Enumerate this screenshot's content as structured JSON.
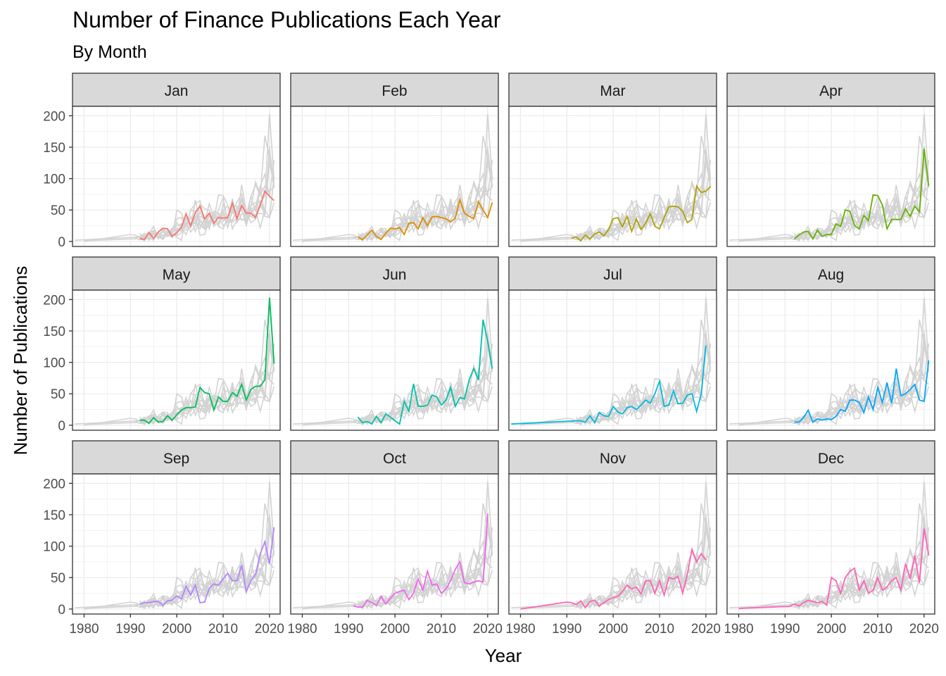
{
  "chart_data": {
    "type": "line",
    "title": "Number of Finance Publications Each Year",
    "subtitle": "By Month",
    "xlabel": "Year",
    "ylabel": "Number of Publications",
    "xlim": [
      1977.5,
      2022.3
    ],
    "ylim": [
      -8,
      215
    ],
    "x_ticks": [
      1980,
      1990,
      2000,
      2010,
      2020
    ],
    "y_ticks": [
      0,
      50,
      100,
      150,
      200
    ],
    "grid": true,
    "background_series_color": "#d3d3d3",
    "facets": [
      {
        "label": "Jan",
        "color": "#F8766D",
        "x": [
          1992,
          1993,
          1994,
          1995,
          1996,
          1997,
          1998,
          1999,
          2000,
          2001,
          2002,
          2003,
          2004,
          2005,
          2006,
          2007,
          2008,
          2009,
          2010,
          2011,
          2012,
          2013,
          2014,
          2015,
          2016,
          2017,
          2018,
          2019,
          2020,
          2021
        ],
        "y": [
          5,
          3,
          14,
          5,
          15,
          21,
          20,
          8,
          14,
          22,
          44,
          25,
          46,
          56,
          36,
          45,
          29,
          38,
          37,
          38,
          61,
          36,
          57,
          45,
          45,
          38,
          58,
          80,
          72,
          65
        ]
      },
      {
        "label": "Feb",
        "color": "#DB8E00",
        "x": [
          1992,
          1993,
          1994,
          1995,
          1996,
          1997,
          1998,
          1999,
          2000,
          2001,
          2002,
          2003,
          2004,
          2005,
          2006,
          2007,
          2008,
          2009,
          2010,
          2011,
          2012,
          2013,
          2014,
          2015,
          2016,
          2017,
          2018,
          2019,
          2020,
          2021
        ],
        "y": [
          7,
          3,
          10,
          18,
          8,
          3,
          13,
          21,
          20,
          22,
          11,
          29,
          30,
          20,
          38,
          25,
          39,
          40,
          38,
          36,
          31,
          37,
          66,
          45,
          40,
          36,
          63,
          50,
          38,
          62
        ]
      },
      {
        "label": "Mar",
        "color": "#AEA200",
        "x": [
          1991,
          1992,
          1993,
          1994,
          1995,
          1996,
          1997,
          1998,
          1999,
          2000,
          2001,
          2002,
          2003,
          2004,
          2005,
          2006,
          2007,
          2008,
          2009,
          2010,
          2011,
          2012,
          2013,
          2014,
          2015,
          2016,
          2017,
          2018,
          2019,
          2020,
          2021
        ],
        "y": [
          5,
          7,
          1,
          10,
          4,
          12,
          15,
          9,
          19,
          36,
          38,
          23,
          40,
          16,
          36,
          19,
          29,
          44,
          24,
          20,
          38,
          55,
          56,
          55,
          48,
          30,
          35,
          88,
          78,
          80,
          87
        ]
      },
      {
        "label": "Apr",
        "color": "#64B200",
        "x": [
          1992,
          1993,
          1994,
          1995,
          1996,
          1997,
          1998,
          1999,
          2000,
          2001,
          2002,
          2003,
          2004,
          2005,
          2006,
          2007,
          2008,
          2009,
          2010,
          2011,
          2012,
          2013,
          2014,
          2015,
          2016,
          2017,
          2018,
          2019,
          2020,
          2021
        ],
        "y": [
          4,
          10,
          15,
          16,
          4,
          18,
          8,
          11,
          11,
          28,
          24,
          50,
          48,
          25,
          20,
          41,
          33,
          74,
          73,
          58,
          20,
          35,
          35,
          35,
          52,
          40,
          56,
          47,
          148,
          88
        ]
      },
      {
        "label": "May",
        "color": "#00BD5C",
        "x": [
          1992,
          1993,
          1994,
          1995,
          1996,
          1997,
          1998,
          1999,
          2000,
          2001,
          2002,
          2003,
          2004,
          2005,
          2006,
          2007,
          2008,
          2009,
          2010,
          2011,
          2012,
          2013,
          2014,
          2015,
          2016,
          2017,
          2018,
          2019,
          2020,
          2021
        ],
        "y": [
          8,
          8,
          3,
          12,
          5,
          6,
          15,
          8,
          17,
          24,
          28,
          28,
          29,
          60,
          52,
          50,
          24,
          45,
          38,
          38,
          52,
          46,
          65,
          40,
          57,
          62,
          62,
          72,
          203,
          98
        ]
      },
      {
        "label": "Jun",
        "color": "#00C1A7",
        "x": [
          1992,
          1993,
          1994,
          1995,
          1996,
          1997,
          1998,
          1999,
          2000,
          2001,
          2002,
          2003,
          2004,
          2005,
          2006,
          2007,
          2008,
          2009,
          2010,
          2011,
          2012,
          2013,
          2014,
          2015,
          2016,
          2017,
          2018,
          2019,
          2020,
          2021
        ],
        "y": [
          13,
          4,
          6,
          2,
          14,
          4,
          18,
          13,
          7,
          2,
          38,
          22,
          66,
          30,
          30,
          32,
          48,
          45,
          32,
          40,
          60,
          30,
          44,
          42,
          72,
          90,
          72,
          168,
          133,
          90
        ]
      },
      {
        "label": "Jul",
        "color": "#00BADE",
        "x": [
          1978,
          1992,
          1993,
          1994,
          1995,
          1996,
          1997,
          1998,
          1999,
          2000,
          2001,
          2002,
          2003,
          2004,
          2005,
          2006,
          2007,
          2008,
          2009,
          2010,
          2011,
          2012,
          2013,
          2014,
          2015,
          2016,
          2017,
          2018,
          2019,
          2020
        ],
        "y": [
          2,
          7,
          7,
          5,
          15,
          4,
          20,
          15,
          14,
          30,
          21,
          18,
          28,
          30,
          25,
          32,
          40,
          35,
          50,
          70,
          30,
          32,
          55,
          34,
          35,
          48,
          50,
          22,
          50,
          127
        ]
      },
      {
        "label": "Aug",
        "color": "#00A6FF",
        "x": [
          1992,
          1993,
          1994,
          1995,
          1996,
          1997,
          1998,
          1999,
          2000,
          2001,
          2002,
          2003,
          2004,
          2005,
          2006,
          2007,
          2008,
          2009,
          2010,
          2011,
          2012,
          2013,
          2014,
          2015,
          2016,
          2017,
          2018,
          2019,
          2020,
          2021
        ],
        "y": [
          5,
          5,
          12,
          24,
          5,
          10,
          8,
          10,
          9,
          14,
          25,
          22,
          40,
          40,
          36,
          20,
          45,
          25,
          60,
          36,
          68,
          35,
          90,
          47,
          50,
          57,
          65,
          40,
          38,
          103
        ]
      },
      {
        "label": "Sep",
        "color": "#B385FF",
        "x": [
          1992,
          1993,
          1994,
          1995,
          1996,
          1997,
          1998,
          1999,
          2000,
          2001,
          2002,
          2003,
          2004,
          2005,
          2006,
          2007,
          2008,
          2009,
          2010,
          2011,
          2012,
          2013,
          2014,
          2015,
          2016,
          2017,
          2018,
          2019,
          2020,
          2021
        ],
        "y": [
          8,
          10,
          10,
          12,
          12,
          6,
          13,
          14,
          21,
          16,
          36,
          22,
          38,
          10,
          11,
          33,
          40,
          38,
          48,
          57,
          45,
          45,
          70,
          28,
          45,
          55,
          88,
          107,
          72,
          130
        ]
      },
      {
        "label": "Oct",
        "color": "#EF67EB",
        "x": [
          1991,
          1992,
          1993,
          1994,
          1995,
          1996,
          1997,
          1998,
          1999,
          2000,
          2001,
          2002,
          2003,
          2004,
          2005,
          2006,
          2007,
          2008,
          2009,
          2010,
          2011,
          2012,
          2013,
          2014,
          2015,
          2016,
          2017,
          2018,
          2019,
          2020
        ],
        "y": [
          5,
          3,
          3,
          14,
          10,
          6,
          20,
          8,
          17,
          25,
          28,
          30,
          15,
          25,
          48,
          30,
          60,
          38,
          40,
          25,
          32,
          45,
          63,
          75,
          42,
          40,
          43,
          45,
          43,
          152
        ]
      },
      {
        "label": "Nov",
        "color": "#FF63B6",
        "x": [
          1980,
          1990,
          1991,
          1992,
          1993,
          1994,
          1995,
          1996,
          1997,
          1998,
          1999,
          2000,
          2001,
          2002,
          2003,
          2004,
          2005,
          2006,
          2007,
          2008,
          2009,
          2010,
          2011,
          2012,
          2013,
          2014,
          2015,
          2016,
          2017,
          2018,
          2019,
          2020
        ],
        "y": [
          0,
          11,
          10,
          7,
          13,
          2,
          12,
          14,
          5,
          10,
          15,
          18,
          20,
          28,
          38,
          32,
          35,
          24,
          45,
          45,
          25,
          45,
          22,
          50,
          48,
          52,
          25,
          55,
          95,
          75,
          88,
          78
        ]
      },
      {
        "label": "Dec",
        "color": "#FF63B6",
        "x": [
          1980,
          1990,
          1991,
          1992,
          1993,
          1994,
          1995,
          1996,
          1997,
          1998,
          1999,
          2000,
          2001,
          2002,
          2003,
          2004,
          2005,
          2006,
          2007,
          2008,
          2009,
          2010,
          2011,
          2012,
          2013,
          2014,
          2015,
          2016,
          2017,
          2018,
          2019,
          2020,
          2021
        ],
        "y": [
          1,
          4,
          4,
          8,
          5,
          10,
          14,
          12,
          10,
          12,
          6,
          50,
          45,
          25,
          50,
          60,
          65,
          30,
          45,
          25,
          30,
          50,
          30,
          35,
          45,
          50,
          30,
          72,
          48,
          85,
          42,
          128,
          85
        ]
      }
    ]
  }
}
